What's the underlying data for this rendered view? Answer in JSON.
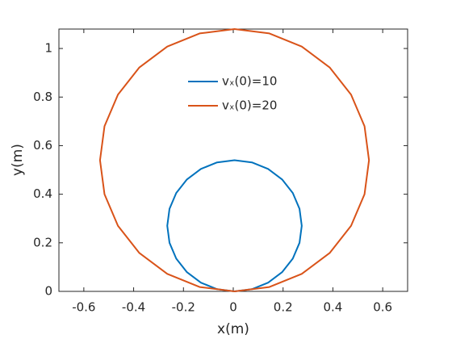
{
  "chart_data": {
    "type": "line",
    "xlabel": "x(m)",
    "ylabel": "y(m)",
    "xlim": [
      -0.7,
      0.7
    ],
    "xticks": [
      -0.6,
      -0.4,
      -0.2,
      0,
      0.2,
      0.4,
      0.6
    ],
    "ylim": [
      0,
      1.08
    ],
    "yticks": [
      0,
      0.2,
      0.4,
      0.6,
      0.8,
      1
    ],
    "legend": "north",
    "grid": false,
    "series": [
      {
        "name": "vₓ(0)=10",
        "color": "#0072bd",
        "x": [
          0.005,
          0.075,
          0.14,
          0.196,
          0.239,
          0.266,
          0.275,
          0.266,
          0.239,
          0.196,
          0.14,
          0.075,
          0.005,
          -0.065,
          -0.13,
          -0.186,
          -0.229,
          -0.256,
          -0.265,
          -0.256,
          -0.229,
          -0.186,
          -0.13,
          -0.065,
          0.005
        ],
        "y": [
          0,
          0.009,
          0.036,
          0.079,
          0.135,
          0.2,
          0.27,
          0.34,
          0.405,
          0.461,
          0.504,
          0.531,
          0.54,
          0.531,
          0.504,
          0.461,
          0.405,
          0.34,
          0.27,
          0.2,
          0.135,
          0.079,
          0.036,
          0.009,
          0
        ]
      },
      {
        "name": "vₓ(0)=20",
        "color": "#d95319",
        "x": [
          0.005,
          0.145,
          0.275,
          0.387,
          0.473,
          0.527,
          0.545,
          0.527,
          0.473,
          0.387,
          0.275,
          0.145,
          0.005,
          -0.135,
          -0.265,
          -0.377,
          -0.463,
          -0.517,
          -0.535,
          -0.517,
          -0.463,
          -0.377,
          -0.265,
          -0.135,
          0.005
        ],
        "y": [
          0,
          0.018,
          0.072,
          0.158,
          0.27,
          0.4,
          0.54,
          0.68,
          0.81,
          0.922,
          1.008,
          1.062,
          1.08,
          1.062,
          1.008,
          0.922,
          0.81,
          0.68,
          0.54,
          0.4,
          0.27,
          0.158,
          0.072,
          0.018,
          0
        ]
      }
    ]
  }
}
